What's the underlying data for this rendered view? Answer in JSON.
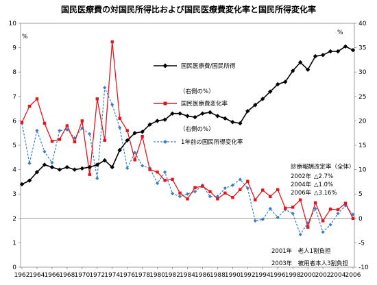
{
  "chart_data": {
    "type": "line",
    "title": "国民医療費の対国民所得比および国民医療費変化率と国民所得変化率",
    "left_unit": "%",
    "right_unit": "%",
    "x": [
      1962,
      1963,
      1964,
      1965,
      1966,
      1967,
      1968,
      1969,
      1970,
      1971,
      1972,
      1973,
      1974,
      1975,
      1976,
      1977,
      1978,
      1979,
      1980,
      1981,
      1982,
      1983,
      1984,
      1985,
      1986,
      1987,
      1988,
      1989,
      1990,
      1991,
      1992,
      1993,
      1994,
      1995,
      1996,
      1997,
      1998,
      1999,
      2000,
      2001,
      2002,
      2003,
      2004,
      2005,
      2006
    ],
    "x_ticks": [
      1962,
      1964,
      1966,
      1968,
      1970,
      1972,
      1974,
      1976,
      1978,
      1980,
      1982,
      1984,
      1986,
      1988,
      1990,
      1992,
      1994,
      1996,
      1998,
      2000,
      2002,
      2004,
      2006
    ],
    "ylim_left": [
      0,
      10
    ],
    "yticks_left": [
      0,
      1,
      2,
      3,
      4,
      5,
      6,
      7,
      8,
      9,
      10
    ],
    "ylim_right": [
      -10,
      40
    ],
    "yticks_right": [
      -10,
      -5,
      0,
      5,
      10,
      15,
      20,
      25,
      30,
      35,
      40
    ],
    "grid": false,
    "series": [
      {
        "name": "国民医療費/国民所得",
        "axis": "left",
        "color": "#000000",
        "style": "solid-diamond",
        "values": [
          3.4,
          3.55,
          3.9,
          4.2,
          4.1,
          4.0,
          4.1,
          4.0,
          4.05,
          4.1,
          4.2,
          4.38,
          4.1,
          4.8,
          5.2,
          5.5,
          5.55,
          5.85,
          6.0,
          6.05,
          6.3,
          6.3,
          6.2,
          6.15,
          6.3,
          6.35,
          6.2,
          6.1,
          5.95,
          5.9,
          6.4,
          6.65,
          6.9,
          7.2,
          7.5,
          7.6,
          8.05,
          8.4,
          8.1,
          8.65,
          8.7,
          8.85,
          8.85,
          9.05,
          8.9
        ]
      },
      {
        "name": "国民医療費変化率",
        "axis": "right",
        "color": "#e8141b",
        "style": "solid-square",
        "values": [
          19.7,
          23.0,
          24.5,
          19.5,
          15.8,
          16.2,
          19.0,
          15.7,
          20.0,
          9.0,
          24.5,
          16.0,
          36.2,
          20.5,
          18.0,
          12.0,
          16.8,
          10.0,
          9.5,
          7.8,
          8.0,
          5.2,
          4.0,
          6.3,
          6.6,
          5.5,
          4.0,
          5.2,
          4.3,
          5.9,
          7.6,
          3.8,
          5.8,
          4.5,
          5.9,
          2.1,
          2.3,
          3.8,
          -1.8,
          3.2,
          -0.5,
          1.9,
          1.8,
          3.1,
          0.0
        ]
      },
      {
        "name": "1年前の国民所得変化率",
        "axis": "right",
        "color": "#3a7fc1",
        "style": "dashed-diamond",
        "values": [
          19.5,
          11.3,
          18.0,
          13.7,
          11.4,
          18.0,
          18.2,
          16.5,
          18.5,
          17.3,
          8.2,
          26.8,
          23.3,
          18.6,
          10.3,
          13.5,
          10.8,
          10.3,
          7.2,
          9.5,
          5.1,
          4.5,
          5.0,
          5.5,
          6.8,
          4.5,
          4.5,
          6.2,
          6.8,
          8.0,
          6.2,
          -0.5,
          -0.2,
          2.0,
          0.2,
          1.8,
          1.0,
          -3.3,
          -0.9,
          2.0,
          -2.8,
          -1.3,
          1.0,
          2.6,
          0.8
        ]
      }
    ],
    "legend": [
      {
        "label": "国民医療費/国民所得"
      },
      {
        "label": "国民医療費変化率",
        "note": "（右側の%）"
      },
      {
        "label": "1年前の国民所得変化率",
        "note": "（右側の%）"
      }
    ],
    "annotations": {
      "revisions_title": "診療報酬改定率（全体）",
      "revisions": [
        {
          "year": "2002年",
          "value": "△2.7%"
        },
        {
          "year": "2004年",
          "value": "△1.0%"
        },
        {
          "year": "2006年",
          "value": "△3.16%"
        }
      ],
      "notes": [
        "2001年　老人1割負担",
        "2003年　被用者本人3割負担"
      ]
    }
  }
}
